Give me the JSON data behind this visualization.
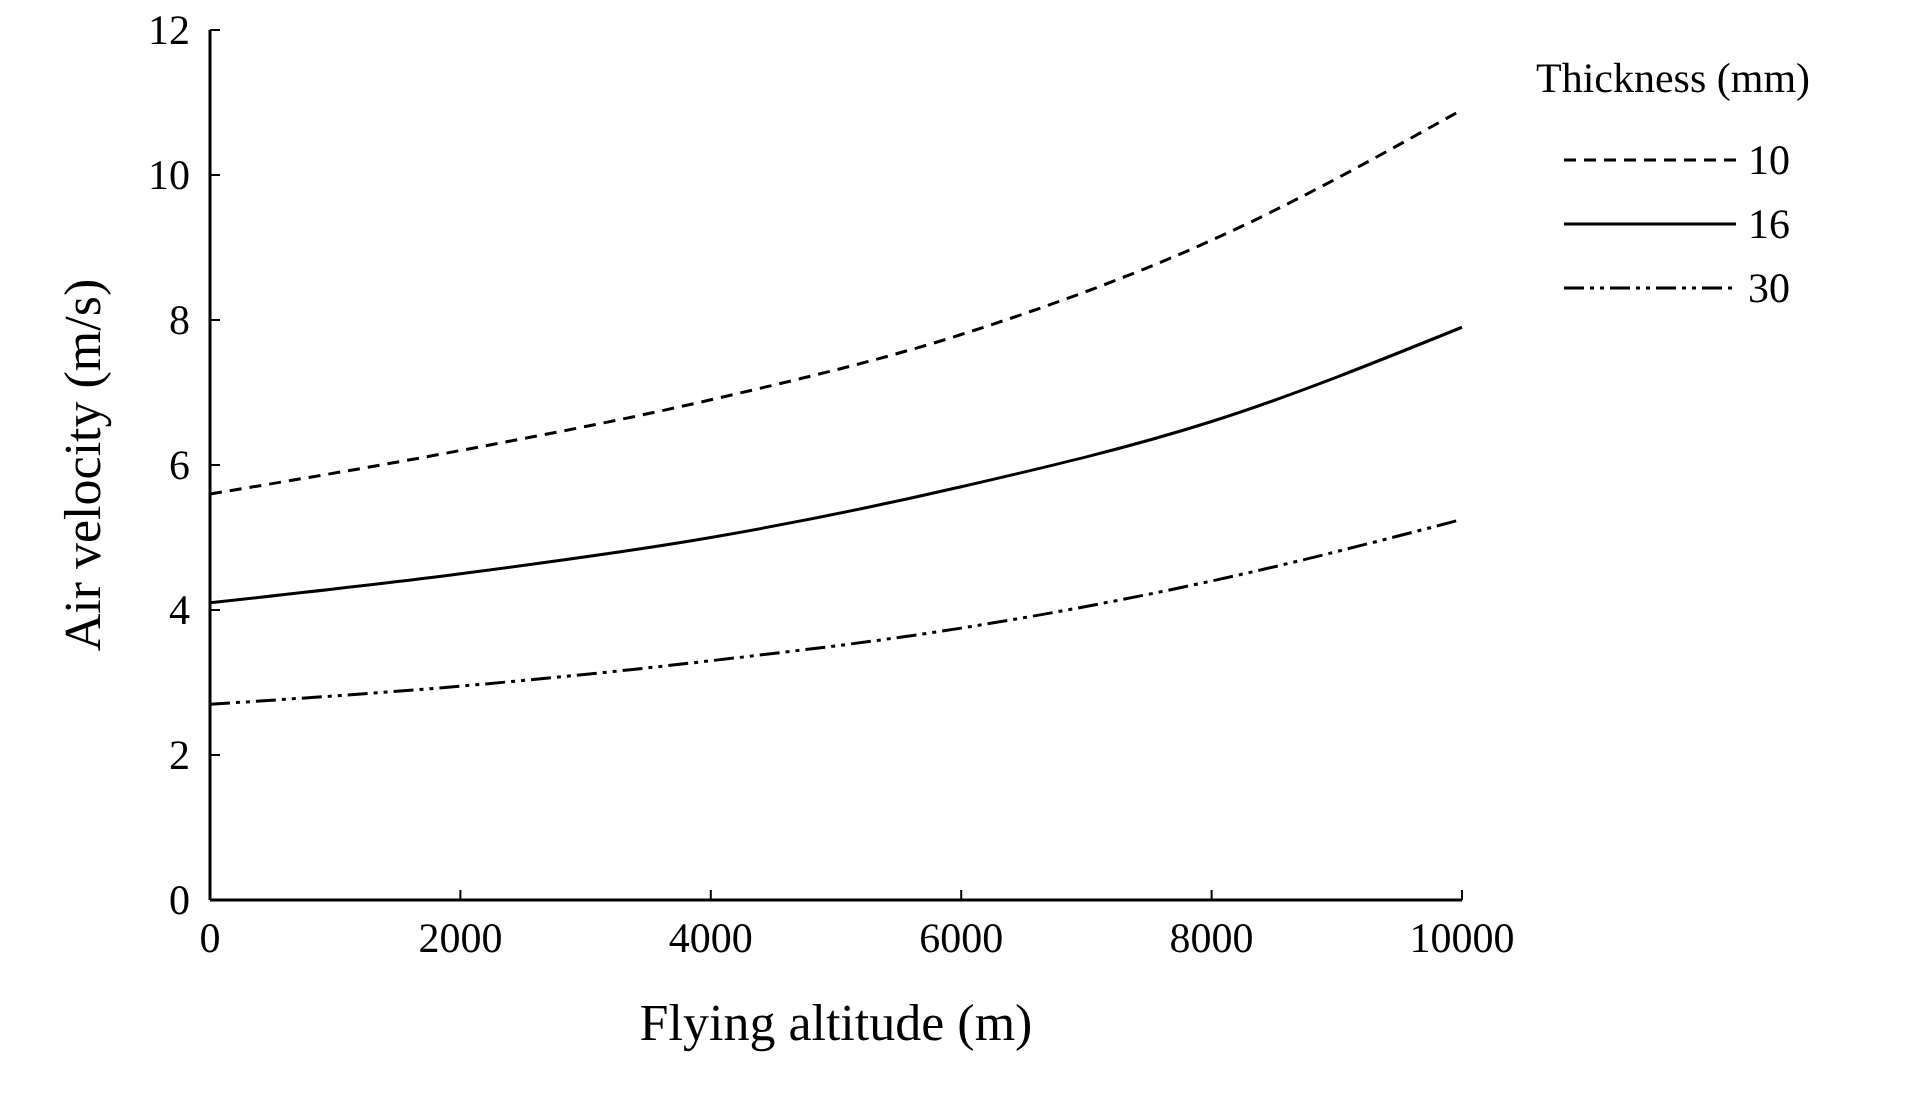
{
  "chart_data": {
    "type": "line",
    "xlabel": "Flying altitude (m)",
    "ylabel": "Air velocity (m/s)",
    "legend_title": "Thickness (mm)",
    "x": [
      0,
      2000,
      4000,
      6000,
      8000,
      10000
    ],
    "xlim": [
      0,
      10000
    ],
    "xticks": [
      0,
      2000,
      4000,
      6000,
      8000,
      10000
    ],
    "ylim": [
      0,
      12
    ],
    "yticks": [
      0,
      2,
      4,
      6,
      8,
      10,
      12
    ],
    "grid": false,
    "legend": "top right",
    "marker": "none",
    "series": [
      {
        "name": "10",
        "color": "#000000",
        "line_style": "dashed",
        "values": [
          5.6,
          6.2,
          6.9,
          7.8,
          9.1,
          10.9
        ]
      },
      {
        "name": "16",
        "color": "#000000",
        "line_style": "solid",
        "values": [
          4.1,
          4.5,
          5.0,
          5.7,
          6.6,
          7.9
        ]
      },
      {
        "name": "30",
        "color": "#000000",
        "line_style": "dashdot",
        "values": [
          2.7,
          2.95,
          3.3,
          3.75,
          4.4,
          5.25
        ]
      }
    ]
  }
}
